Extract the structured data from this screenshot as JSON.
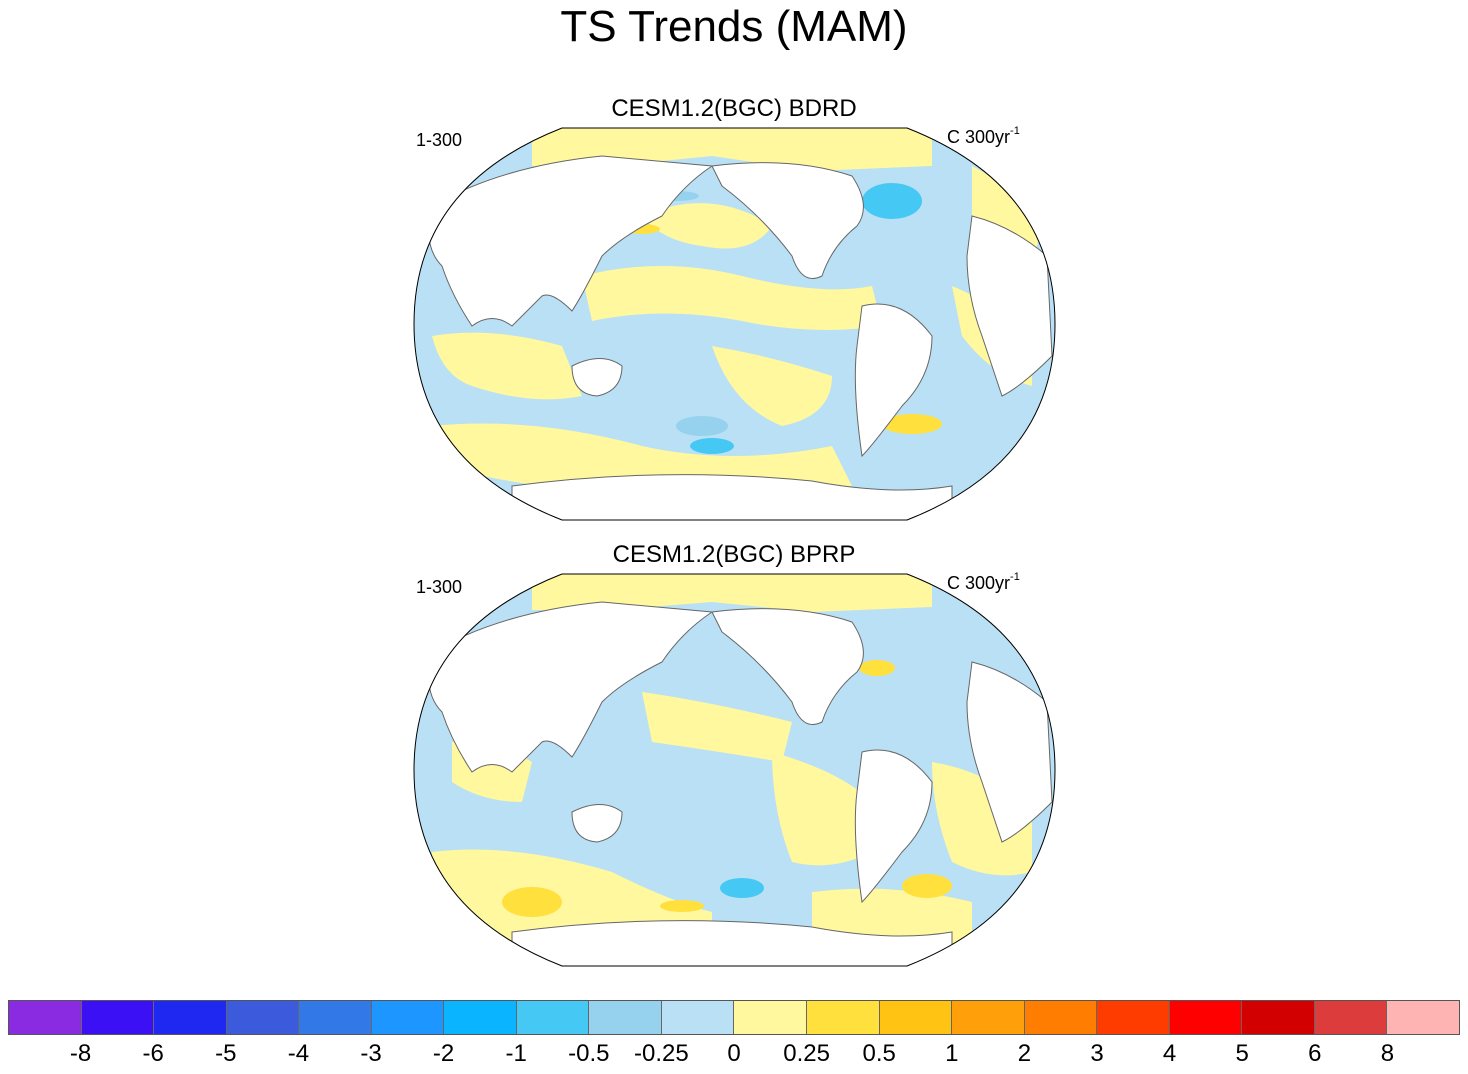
{
  "title": "TS Trends (MAM)",
  "panels": [
    {
      "title": "CESM1.2(BGC) BDRD",
      "left_string": "1-300",
      "right_string": "C 300yr",
      "right_superscript": "-1"
    },
    {
      "title": "CESM1.2(BGC) BPRP",
      "left_string": "1-300",
      "right_string": "C 300yr",
      "right_superscript": "-1"
    }
  ],
  "colorbar": {
    "colors": [
      "#8a2be2",
      "#3c10f5",
      "#1e28f0",
      "#3c5adc",
      "#3278e6",
      "#1e96ff",
      "#0ab4ff",
      "#46c8f5",
      "#96d2ee",
      "#b9e0f5",
      "#fff89e",
      "#ffe03c",
      "#ffc314",
      "#ffa00a",
      "#ff7d00",
      "#ff3c00",
      "#ff0000",
      "#d20000",
      "#dc3c3c",
      "#ffb4b4"
    ],
    "labels": [
      "-8",
      "-6",
      "-5",
      "-4",
      "-3",
      "-2",
      "-1",
      "-0.5",
      "-0.25",
      "0",
      "0.25",
      "0.5",
      "1",
      "2",
      "3",
      "4",
      "5",
      "6",
      "8"
    ]
  }
}
